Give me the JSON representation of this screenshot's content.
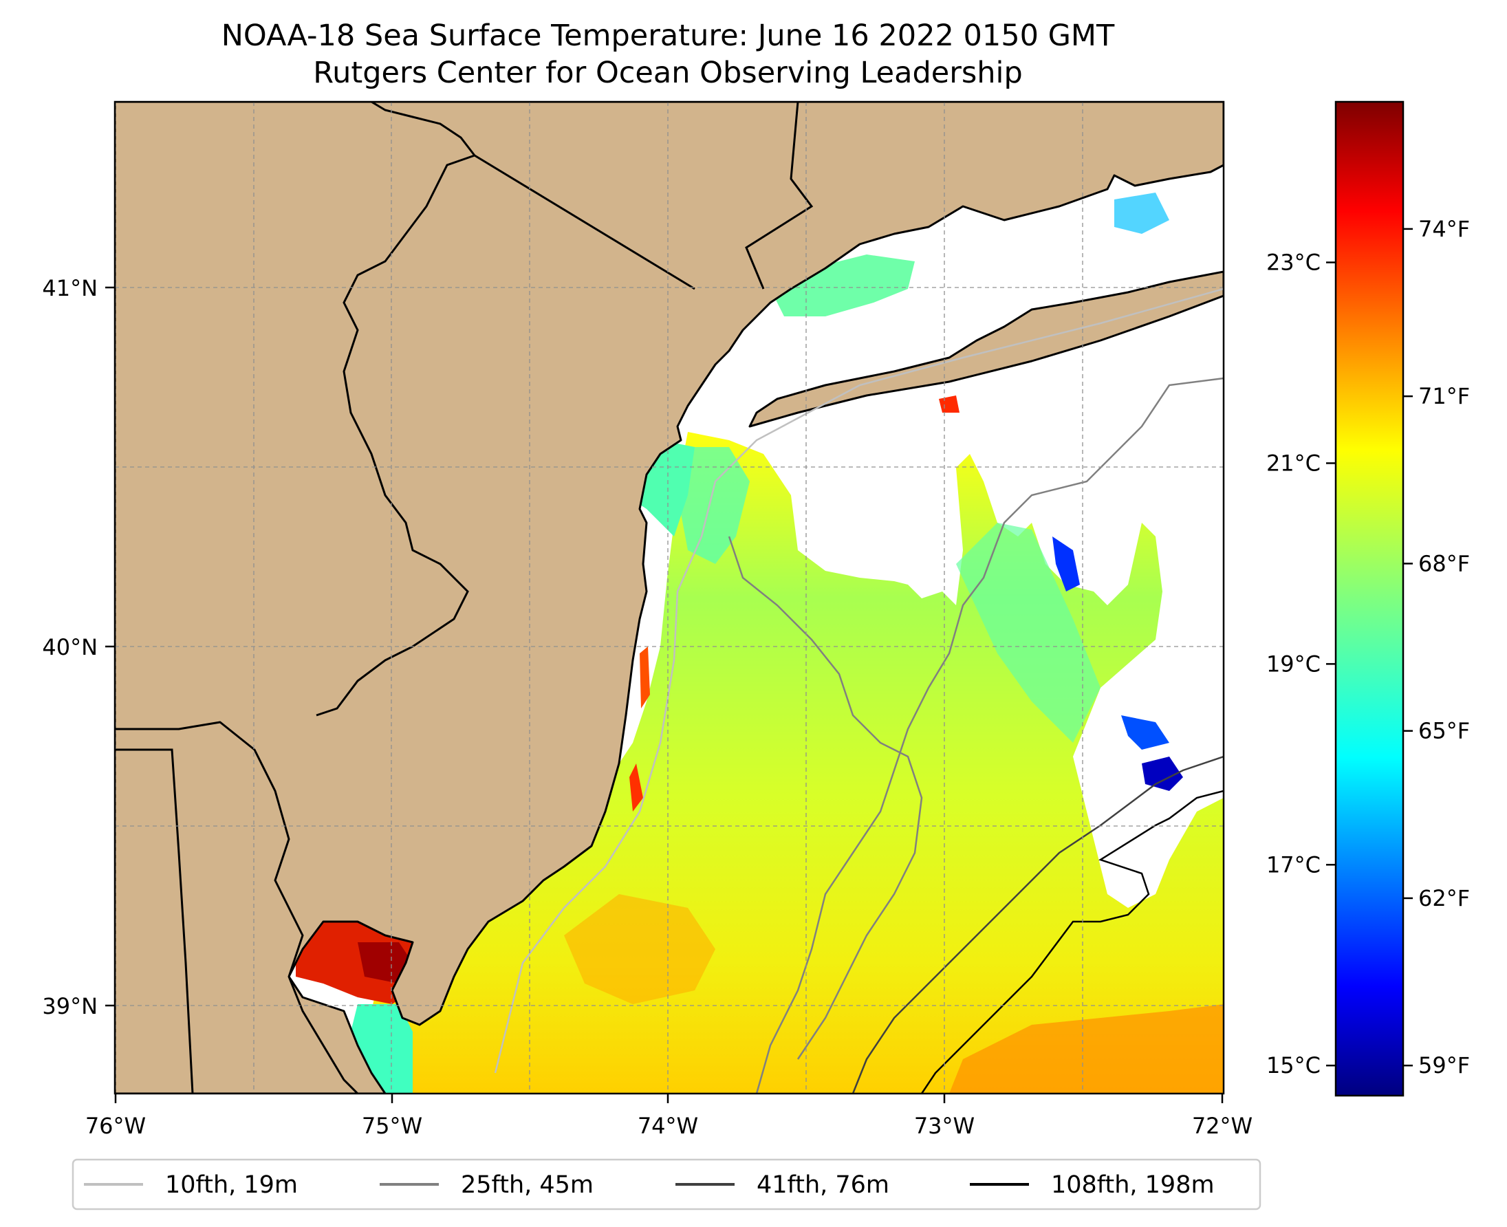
{
  "title": "NOAA-18 Sea Surface Temperature: June 16 2022 0150 GMT",
  "subtitle": "Rutgers Center for Ocean Observing Leadership",
  "map": {
    "lon_range": [
      -76.0,
      -72.0
    ],
    "lat_range": [
      38.75,
      41.52
    ],
    "lon_ticks": [
      {
        "value": -76,
        "label": "76°W"
      },
      {
        "value": -75,
        "label": "75°W"
      },
      {
        "value": -74,
        "label": "74°W"
      },
      {
        "value": -73,
        "label": "73°W"
      },
      {
        "value": -72,
        "label": "72°W"
      }
    ],
    "lat_ticks": [
      {
        "value": 41,
        "label": "41°N"
      },
      {
        "value": 40,
        "label": "40°N"
      },
      {
        "value": 39,
        "label": "39°N"
      }
    ],
    "land_color": "#d2b48c",
    "missing_color": "#ffffff"
  },
  "colorbar": {
    "colormap": "jet",
    "range_c": [
      14.7,
      24.6
    ],
    "celsius_ticks": [
      {
        "value": 15,
        "label": "15°C"
      },
      {
        "value": 17,
        "label": "17°C"
      },
      {
        "value": 19,
        "label": "19°C"
      },
      {
        "value": 21,
        "label": "21°C"
      },
      {
        "value": 23,
        "label": "23°C"
      }
    ],
    "fahrenheit_ticks": [
      {
        "value": 59,
        "label": "59°F"
      },
      {
        "value": 62,
        "label": "62°F"
      },
      {
        "value": 65,
        "label": "65°F"
      },
      {
        "value": 68,
        "label": "68°F"
      },
      {
        "value": 71,
        "label": "71°F"
      },
      {
        "value": 74,
        "label": "74°F"
      }
    ]
  },
  "legend": [
    {
      "label": "10fth, 19m",
      "color": "#c0c0c0"
    },
    {
      "label": "25fth, 45m",
      "color": "#808080"
    },
    {
      "label": "41fth, 76m",
      "color": "#404040"
    },
    {
      "label": "108fth, 198m",
      "color": "#000000"
    }
  ]
}
